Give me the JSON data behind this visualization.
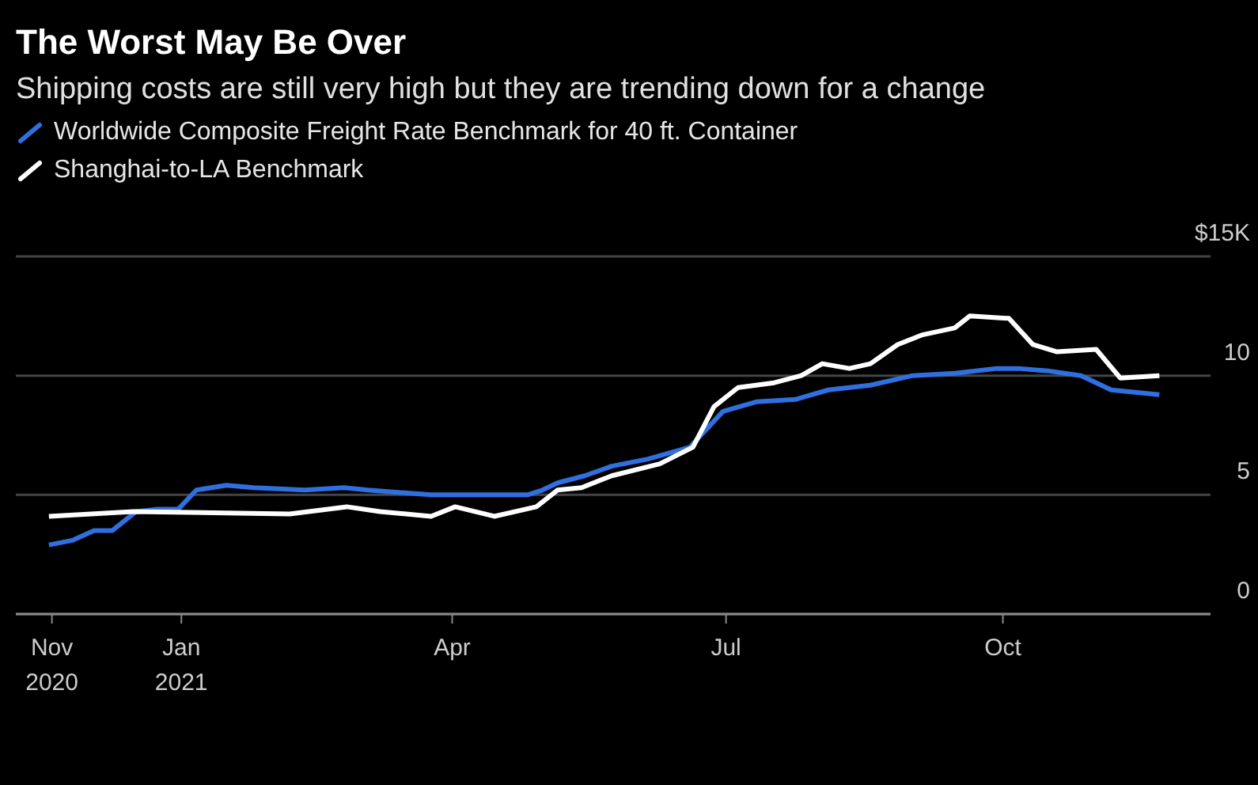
{
  "chart_data": {
    "type": "line",
    "title": "The Worst May Be Over",
    "subtitle": "Shipping costs are still very high but they are trending down for a change",
    "series": [
      {
        "name": "Worldwide Composite Freight Rate Benchmark for 40 ft. Container",
        "color": "#2f6fe0",
        "x": [
          "2020-11-18",
          "2020-11-26",
          "2020-12-03",
          "2020-12-09",
          "2020-12-17",
          "2020-12-24",
          "2020-12-31",
          "2021-01-06",
          "2021-01-16",
          "2021-01-25",
          "2021-02-11",
          "2021-02-24",
          "2021-03-04",
          "2021-03-25",
          "2021-04-08",
          "2021-04-26",
          "2021-05-01",
          "2021-05-06",
          "2021-05-15",
          "2021-05-24",
          "2021-06-05",
          "2021-06-19",
          "2021-06-30",
          "2021-07-11",
          "2021-07-24",
          "2021-08-04",
          "2021-08-18",
          "2021-09-01",
          "2021-09-15",
          "2021-09-29",
          "2021-10-06",
          "2021-10-16",
          "2021-10-27",
          "2021-11-06",
          "2021-11-22"
        ],
        "values": [
          2.9,
          3.1,
          3.5,
          3.5,
          4.3,
          4.4,
          4.4,
          5.2,
          5.4,
          5.3,
          5.2,
          5.3,
          5.2,
          5.0,
          5.0,
          5.0,
          5.2,
          5.5,
          5.8,
          6.2,
          6.5,
          7.0,
          8.5,
          8.9,
          9.0,
          9.4,
          9.6,
          10.0,
          10.1,
          10.3,
          10.3,
          10.2,
          10.0,
          9.4,
          9.2
        ]
      },
      {
        "name": "Shanghai-to-LA Benchmark",
        "color": "#ffffff",
        "x": [
          "2020-11-18",
          "2020-12-16",
          "2021-02-06",
          "2021-02-25",
          "2021-03-08",
          "2021-03-25",
          "2021-04-02",
          "2021-04-15",
          "2021-04-29",
          "2021-05-06",
          "2021-05-14",
          "2021-05-24",
          "2021-06-09",
          "2021-06-20",
          "2021-06-27",
          "2021-07-05",
          "2021-07-17",
          "2021-07-26",
          "2021-08-02",
          "2021-08-11",
          "2021-08-18",
          "2021-08-27",
          "2021-09-04",
          "2021-09-15",
          "2021-09-20",
          "2021-10-03",
          "2021-10-11",
          "2021-10-19",
          "2021-11-01",
          "2021-11-09",
          "2021-11-22"
        ],
        "values": [
          4.1,
          4.3,
          4.2,
          4.5,
          4.3,
          4.1,
          4.5,
          4.1,
          4.5,
          5.2,
          5.3,
          5.8,
          6.3,
          7.0,
          8.7,
          9.5,
          9.7,
          10.0,
          10.5,
          10.3,
          10.5,
          11.3,
          11.7,
          12.0,
          12.5,
          12.4,
          11.3,
          11.0,
          11.1,
          9.9,
          10.0
        ]
      }
    ],
    "xlim": [
      "2020-11-07",
      "2021-12-09"
    ],
    "xticks": [
      {
        "value": "2020-11-19",
        "label": "Nov 2020"
      },
      {
        "value": "2021-01-01",
        "label": "Jan 2021"
      },
      {
        "value": "2021-04-01",
        "label": "Apr"
      },
      {
        "value": "2021-07-01",
        "label": "Jul"
      },
      {
        "value": "2021-10-01",
        "label": "Oct"
      }
    ],
    "ylim": [
      0,
      15
    ],
    "yticks": [
      0,
      5,
      10,
      {
        "value": 15,
        "label": "$15K"
      }
    ],
    "grid": "y",
    "legend": "top left",
    "marker": "none",
    "line_style": "solid"
  }
}
